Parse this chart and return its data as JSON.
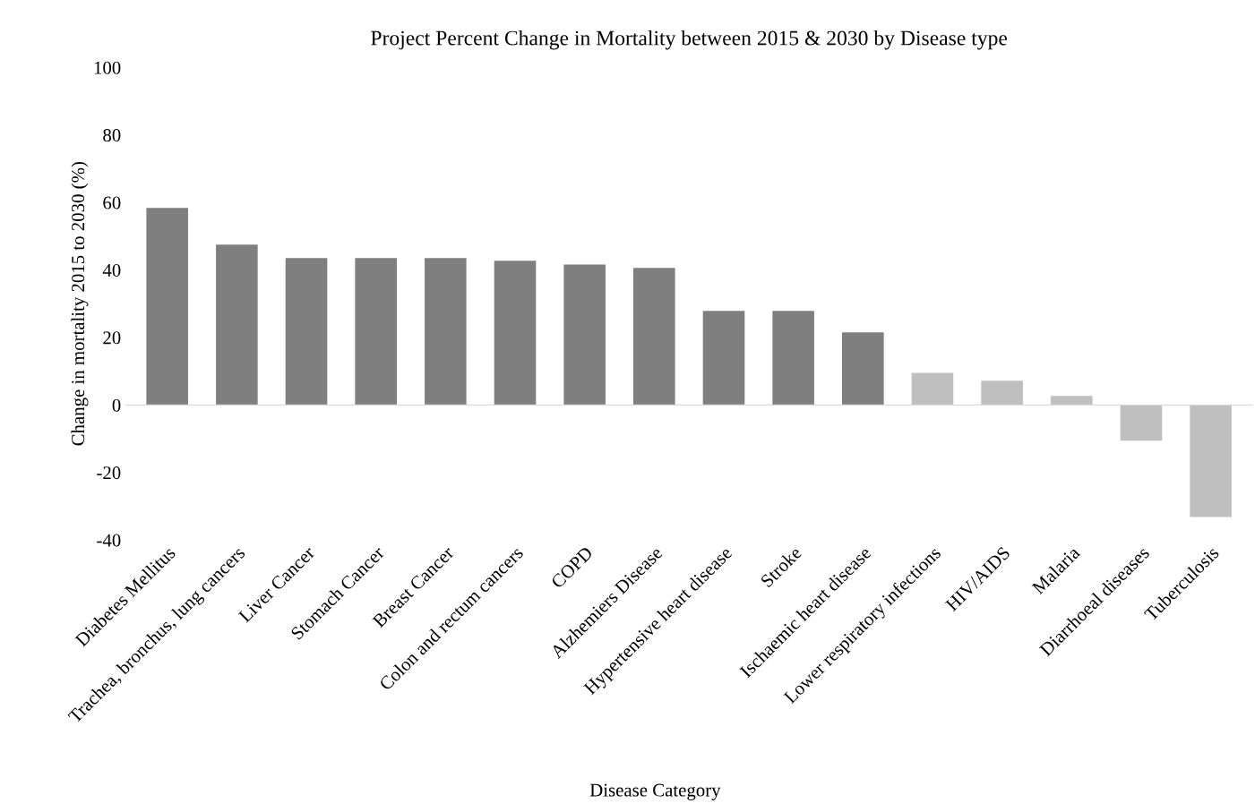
{
  "chart_data": {
    "type": "bar",
    "title": "Project Percent Change in Mortality between 2015 & 2030 by Disease type",
    "xlabel": "Disease Category",
    "ylabel": "Change in mortality 2015 to 2030 (%)",
    "categories": [
      "Diabetes Mellitus",
      "Trachea, bronchus, lung cancers",
      "Liver Cancer",
      "Stomach Cancer",
      "Breast Cancer",
      "Colon and rectum cancers",
      "COPD",
      "Alzhemiers Disease",
      "Hypertensive heart disease",
      "Stroke",
      "Ischaemic heart disease",
      "Lower respiratory infections",
      "HIV/AIDS",
      "Malaria",
      "Diarrhoeal diseases",
      "Tuberculosis"
    ],
    "values": [
      58.4,
      47.5,
      43.5,
      43.5,
      43.5,
      42.7,
      41.6,
      40.6,
      27.9,
      27.9,
      21.5,
      9.5,
      7.2,
      2.7,
      -10.6,
      -33.2
    ],
    "colors": [
      "#7f7f7f",
      "#7f7f7f",
      "#7f7f7f",
      "#7f7f7f",
      "#7f7f7f",
      "#7f7f7f",
      "#7f7f7f",
      "#7f7f7f",
      "#7f7f7f",
      "#7f7f7f",
      "#7f7f7f",
      "#bfbfbf",
      "#bfbfbf",
      "#bfbfbf",
      "#bfbfbf",
      "#bfbfbf"
    ],
    "ylim": [
      -40,
      100
    ],
    "yticks": [
      -40,
      -20,
      0,
      20,
      40,
      60,
      80,
      100
    ],
    "legend": false
  }
}
